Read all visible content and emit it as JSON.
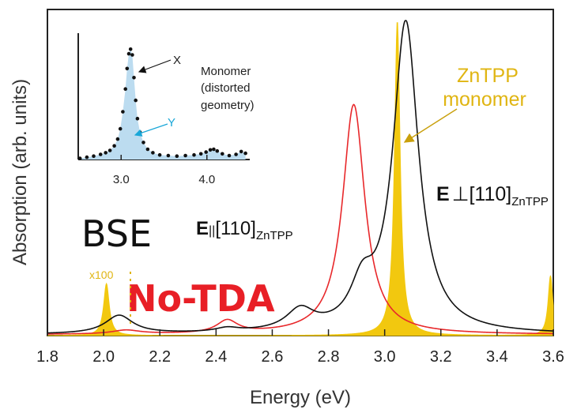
{
  "chart_data": {
    "type": "line",
    "xlabel": "Energy (eV)",
    "ylabel": "Absorption (arb. units)",
    "xlim": [
      1.8,
      3.6
    ],
    "ylim": [
      0,
      1.0
    ],
    "x_ticks": [
      "1.8",
      "2.0",
      "2.2",
      "2.4",
      "2.6",
      "2.8",
      "3.0",
      "3.2",
      "3.4",
      "3.6"
    ],
    "grid": false,
    "series": [
      {
        "label_bold": "E",
        "label_symbol": "||",
        "label_bracket": "[110]",
        "label_sub": "ZnTPP",
        "color": "#e8282b",
        "peaks": [
          {
            "x": 2.08,
            "h": 0.012,
            "w": 0.06
          },
          {
            "x": 2.44,
            "h": 0.04,
            "w": 0.045
          },
          {
            "x": 2.89,
            "h": 0.73,
            "w": 0.048
          }
        ],
        "baseline": 0.003
      },
      {
        "label_bold": "E",
        "label_symbol": "⊥",
        "label_bracket": "[110]",
        "label_sub": "ZnTPP",
        "color": "#111111",
        "peaks": [
          {
            "x": 2.055,
            "h": 0.058,
            "w": 0.06
          },
          {
            "x": 2.44,
            "h": 0.012,
            "w": 0.05
          },
          {
            "x": 2.7,
            "h": 0.065,
            "w": 0.06
          },
          {
            "x": 2.92,
            "h": 0.12,
            "w": 0.05
          },
          {
            "x": 3.075,
            "h": 0.985,
            "w": 0.055
          }
        ],
        "baseline": 0.003
      },
      {
        "name": "ZnTPP monomer",
        "color": "#f2c80f",
        "fill": true,
        "peaks": [
          {
            "x": 2.01,
            "h": 0.165,
            "w": 0.012
          },
          {
            "x": 3.045,
            "h": 1.0,
            "w": 0.012
          },
          {
            "x": 3.59,
            "h": 0.19,
            "w": 0.01
          }
        ],
        "baseline": 0.0
      }
    ],
    "annotations": {
      "x100": "x100",
      "monomer_line1": "ZnTPP",
      "monomer_line2": "monomer",
      "bse": "BSE",
      "notda": "No-TDA"
    },
    "inset": {
      "xlim": [
        2.5,
        4.5
      ],
      "x_ticks": [
        "3.0",
        "4.0"
      ],
      "note_lines": [
        "Monomer",
        "(distorted",
        "geometry)"
      ],
      "label_x": "X",
      "label_y": "Y",
      "arrow_x_color": "#111111",
      "arrow_y_color": "#1aa7d8",
      "fill_color": "#bcdcf0",
      "dots": [
        [
          2.52,
          0.01
        ],
        [
          2.6,
          0.02
        ],
        [
          2.68,
          0.03
        ],
        [
          2.76,
          0.045
        ],
        [
          2.82,
          0.06
        ],
        [
          2.87,
          0.08
        ],
        [
          2.92,
          0.12
        ],
        [
          2.96,
          0.18
        ],
        [
          2.99,
          0.27
        ],
        [
          3.02,
          0.42
        ],
        [
          3.05,
          0.62
        ],
        [
          3.07,
          0.8
        ],
        [
          3.09,
          0.93
        ],
        [
          3.11,
          0.97
        ],
        [
          3.13,
          0.92
        ],
        [
          3.15,
          0.72
        ],
        [
          3.17,
          0.52
        ],
        [
          3.19,
          0.36
        ],
        [
          3.22,
          0.24
        ],
        [
          3.26,
          0.15
        ],
        [
          3.31,
          0.09
        ],
        [
          3.37,
          0.06
        ],
        [
          3.45,
          0.04
        ],
        [
          3.55,
          0.035
        ],
        [
          3.65,
          0.03
        ],
        [
          3.75,
          0.035
        ],
        [
          3.85,
          0.04
        ],
        [
          3.93,
          0.05
        ],
        [
          3.99,
          0.065
        ],
        [
          4.04,
          0.085
        ],
        [
          4.08,
          0.09
        ],
        [
          4.12,
          0.075
        ],
        [
          4.18,
          0.05
        ],
        [
          4.26,
          0.035
        ],
        [
          4.34,
          0.045
        ],
        [
          4.4,
          0.07
        ],
        [
          4.45,
          0.055
        ]
      ]
    }
  }
}
